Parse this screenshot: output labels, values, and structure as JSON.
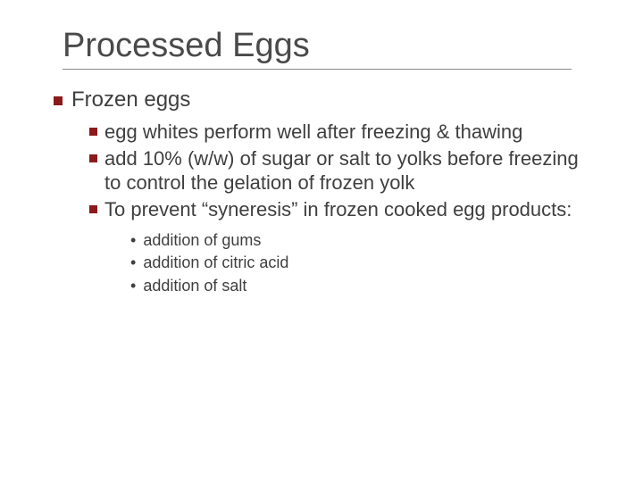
{
  "title": "Processed Eggs",
  "colors": {
    "text": "#3f3f3f",
    "title": "#4a4a4a",
    "bullet": "#8b1a1a",
    "underline": "#8a8a8a",
    "background": "#ffffff"
  },
  "fonts": {
    "title_size": 38,
    "level1_size": 24,
    "level2_size": 22,
    "level3_size": 18,
    "family": "Verdana"
  },
  "level1": {
    "text": "Frozen eggs"
  },
  "level2": [
    {
      "text": "egg whites perform well after freezing & thawing"
    },
    {
      "text": "add 10% (w/w) of sugar or salt to yolks before freezing to control the gelation of frozen yolk"
    },
    {
      "text": "To prevent “syneresis” in frozen cooked egg products:"
    }
  ],
  "level3": [
    {
      "text": "addition of gums"
    },
    {
      "text": "addition of citric acid"
    },
    {
      "text": "addition of salt"
    }
  ]
}
